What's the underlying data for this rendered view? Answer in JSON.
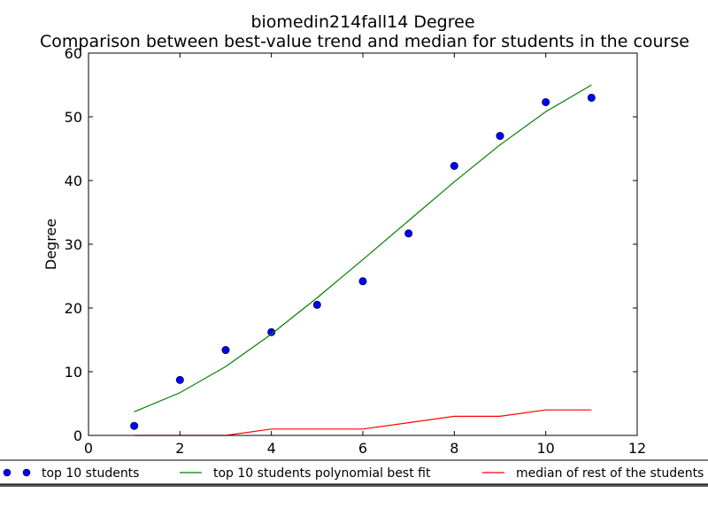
{
  "chart_data": {
    "type": "line",
    "title": "biomedin214fall14 Degree",
    "subtitle": "Comparison between best-value trend and median for students in the course",
    "xlabel": "",
    "ylabel": "Degree",
    "xlim": [
      0,
      12
    ],
    "ylim": [
      0,
      60
    ],
    "xticks": [
      "0",
      "2",
      "4",
      "6",
      "8",
      "10",
      "12"
    ],
    "yticks": [
      "0",
      "10",
      "20",
      "30",
      "40",
      "50",
      "60"
    ],
    "grid": false,
    "legend_position": "bottom",
    "series": [
      {
        "name": "top 10 students",
        "kind": "scatter",
        "color": "#0000ff",
        "x": [
          1,
          2,
          3,
          4,
          5,
          6,
          7,
          8,
          9,
          10,
          11
        ],
        "y": [
          1.5,
          8.7,
          13.4,
          16.2,
          20.5,
          24.2,
          31.7,
          42.3,
          47.0,
          52.3,
          53.0
        ]
      },
      {
        "name": "top 10 students polynomial best fit",
        "kind": "line",
        "color": "#008000",
        "x": [
          1,
          2,
          3,
          4,
          5,
          6,
          7,
          8,
          9,
          10,
          11
        ],
        "y": [
          3.7,
          6.7,
          10.8,
          15.9,
          21.6,
          27.6,
          33.7,
          39.8,
          45.6,
          50.8,
          55.0
        ]
      },
      {
        "name": "median of rest of the students",
        "kind": "line",
        "color": "#ff0000",
        "x": [
          1,
          2,
          3,
          4,
          5,
          6,
          7,
          8,
          9,
          10,
          11
        ],
        "y": [
          0,
          0,
          0,
          1,
          1,
          1,
          2,
          3,
          3,
          4,
          4
        ]
      }
    ]
  }
}
